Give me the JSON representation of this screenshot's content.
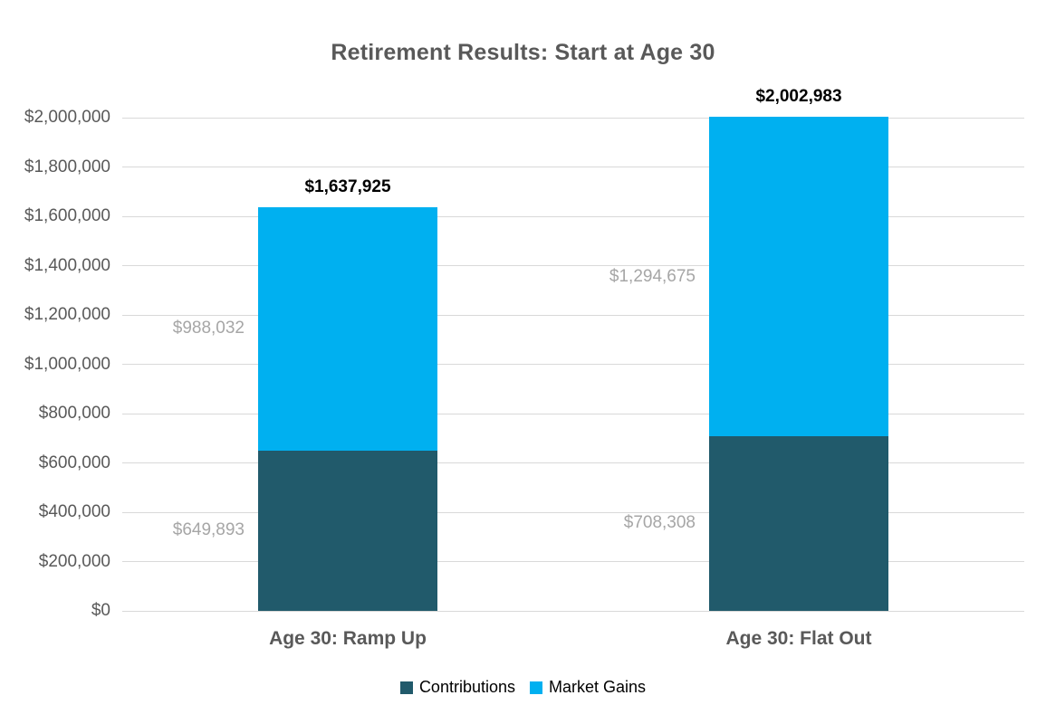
{
  "page": {
    "background": "#ffffff"
  },
  "chart_data": {
    "type": "bar",
    "stacked": true,
    "title": "Retirement Results: Start at Age 30",
    "categories": [
      "Age 30: Ramp Up",
      "Age 30: Flat Out"
    ],
    "series": [
      {
        "name": "Contributions",
        "color": "#215a6b",
        "values": [
          649893,
          708308
        ],
        "labels": [
          "$649,893",
          "$708,308"
        ]
      },
      {
        "name": "Market Gains",
        "color": "#00b0f0",
        "values": [
          988032,
          1294675
        ],
        "labels": [
          "$988,032",
          "$1,294,675"
        ]
      }
    ],
    "totals": {
      "values": [
        1637925,
        2002983
      ],
      "labels": [
        "$1,637,925",
        "$2,002,983"
      ]
    },
    "xlabel": "",
    "ylabel": "",
    "ylim": [
      0,
      2000000
    ],
    "ytick_step": 200000,
    "yticks": [
      "$0",
      "$200,000",
      "$400,000",
      "$600,000",
      "$800,000",
      "$1,000,000",
      "$1,200,000",
      "$1,400,000",
      "$1,600,000",
      "$1,800,000",
      "$2,000,000"
    ],
    "grid": true,
    "legend_position": "bottom"
  },
  "colors": {
    "gridline": "#d9d9d9",
    "title_text": "#595959",
    "axis_tick_text": "#595959",
    "category_text": "#595959",
    "segment_label_text": "#a6a6a6",
    "total_label_text": "#000000",
    "legend_text": "#000000"
  }
}
